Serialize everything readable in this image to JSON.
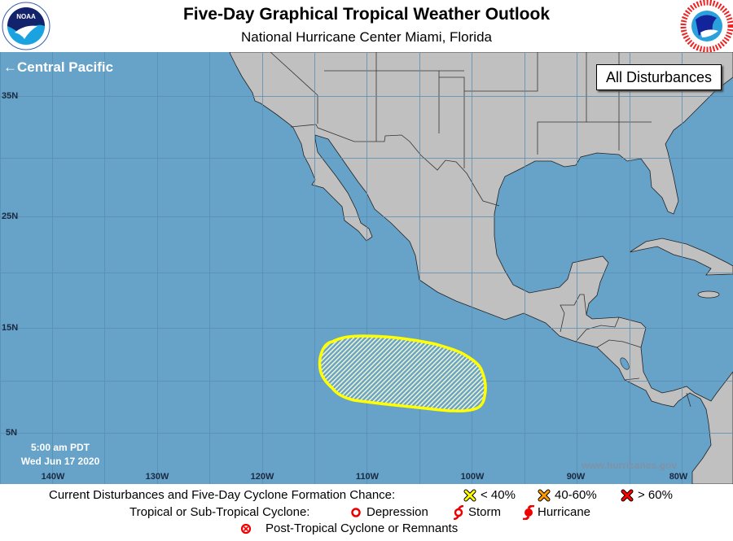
{
  "header": {
    "title": "Five-Day Graphical Tropical Weather Outlook",
    "subtitle": "National Hurricane Center  Miami, Florida",
    "left_logo": {
      "name": "noaa-logo",
      "text": "NOAA"
    },
    "right_logo": {
      "name": "nws-logo",
      "text": "NATIONAL WEATHER SERVICE"
    }
  },
  "map": {
    "central_pacific_link": "Central Pacific",
    "central_pacific_icon": "arrow-left-icon",
    "basin_button": "All Disturbances",
    "lat_labels": [
      "35N",
      "25N",
      "15N",
      "5N"
    ],
    "lon_labels": [
      "140W",
      "130W",
      "120W",
      "110W",
      "100W",
      "90W",
      "80W"
    ],
    "issue_time": "5:00 am PDT",
    "issue_date": "Wed Jun 17 2020",
    "watermark": "www.hurricanes.gov",
    "colors": {
      "ocean": "#67a3c9",
      "land": "#c0c0c0",
      "grid": "#5a8db3",
      "disturbance_outline": "#ffff00"
    },
    "disturbances": [
      {
        "category": "< 40%",
        "color": "#ffff00",
        "hatched": true,
        "approx_center": "10N 106W"
      }
    ]
  },
  "legend": {
    "formation_label": "Current Disturbances and Five-Day Cyclone Formation Chance:",
    "formation_items": [
      {
        "icon": "x-yellow-icon",
        "label": "< 40%",
        "color": "#ffff00"
      },
      {
        "icon": "x-orange-icon",
        "label": "40-60%",
        "color": "#ff9900"
      },
      {
        "icon": "x-red-icon",
        "label": "> 60%",
        "color": "#ff0000"
      }
    ],
    "cyclone_label": "Tropical or Sub-Tropical Cyclone:",
    "cyclone_items": [
      {
        "icon": "depression-icon",
        "label": "Depression"
      },
      {
        "icon": "storm-icon",
        "label": "Storm"
      },
      {
        "icon": "hurricane-icon",
        "label": "Hurricane"
      }
    ],
    "post_tropical": {
      "icon": "post-tropical-icon",
      "label": "Post-Tropical Cyclone or Remnants"
    }
  }
}
